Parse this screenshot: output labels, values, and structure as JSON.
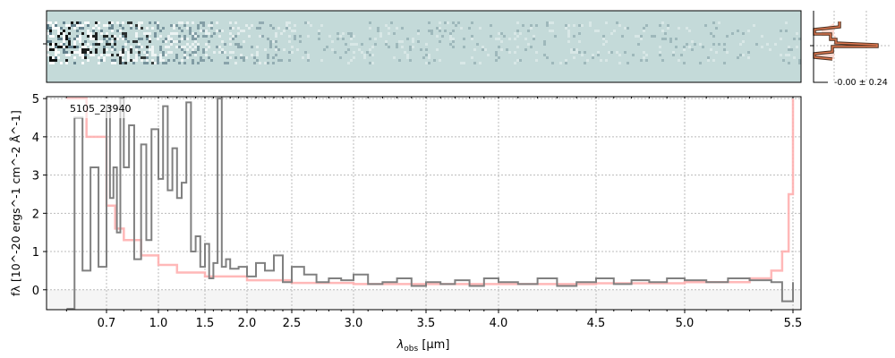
{
  "chart_data": {
    "type": "line",
    "title": "",
    "object_label": "5105_23940",
    "xlabel": "λobs [μm]",
    "ylabel": "fλ [10^-20 ergs^-1 cm^-2 Å^-1]",
    "xlabel_parts": {
      "sym": "λ",
      "sub": "obs",
      "unit": " [μm]"
    },
    "ylabel_parts": {
      "sym": "f",
      "sub": "λ",
      "rest": " [10",
      "e1": "−20",
      "mid": " ergs",
      "e2": "−1",
      "mid2": "cm",
      "e3": "−2",
      "mid3": "Å",
      "e4": "−1",
      "end": "]"
    },
    "xlim": [
      0.55,
      5.53
    ],
    "ylim": [
      -0.52,
      5.05
    ],
    "xticks": [
      "0.7",
      "1.0",
      "1.5",
      "2.0",
      "2.5",
      "3.0",
      "3.5",
      "4.0",
      "4.5",
      "5.0",
      "5.5"
    ],
    "yticks": [
      "0",
      "1",
      "2",
      "3",
      "4",
      "5"
    ],
    "grid": true,
    "side_panel_label": "-0.00 ± 0.24",
    "series": [
      {
        "name": "flux",
        "color": "#808080",
        "x": [
          0.6,
          0.62,
          0.64,
          0.66,
          0.68,
          0.7,
          0.72,
          0.74,
          0.76,
          0.78,
          0.8,
          0.83,
          0.86,
          0.9,
          0.93,
          0.96,
          1.0,
          1.05,
          1.1,
          1.15,
          1.2,
          1.25,
          1.3,
          1.35,
          1.4,
          1.45,
          1.5,
          1.55,
          1.6,
          1.65,
          1.7,
          1.75,
          1.8,
          1.9,
          2.0,
          2.1,
          2.2,
          2.3,
          2.4,
          2.5,
          2.6,
          2.7,
          2.8,
          2.9,
          3.0,
          3.1,
          3.2,
          3.3,
          3.4,
          3.5,
          3.6,
          3.7,
          3.8,
          3.9,
          4.0,
          4.1,
          4.2,
          4.3,
          4.4,
          4.5,
          4.6,
          4.7,
          4.8,
          4.9,
          5.0,
          5.1,
          5.2,
          5.3,
          5.4,
          5.45,
          5.5
        ],
        "y": [
          -0.5,
          4.5,
          0.5,
          3.2,
          0.6,
          4.8,
          2.4,
          3.2,
          1.5,
          5.0,
          3.2,
          4.3,
          0.8,
          3.8,
          1.3,
          4.2,
          2.9,
          4.8,
          2.6,
          3.7,
          2.4,
          2.8,
          4.9,
          1.0,
          1.4,
          0.6,
          1.2,
          0.3,
          0.7,
          5.0,
          0.6,
          0.8,
          0.55,
          0.6,
          0.35,
          0.7,
          0.5,
          0.9,
          0.2,
          0.6,
          0.4,
          0.2,
          0.3,
          0.25,
          0.4,
          0.15,
          0.2,
          0.3,
          0.1,
          0.2,
          0.15,
          0.25,
          0.1,
          0.3,
          0.2,
          0.15,
          0.3,
          0.1,
          0.2,
          0.3,
          0.15,
          0.25,
          0.2,
          0.3,
          0.25,
          0.2,
          0.3,
          0.25,
          0.2,
          -0.3,
          0.2
        ]
      },
      {
        "name": "error",
        "color": "#ffb0b0",
        "x": [
          0.6,
          0.65,
          0.7,
          0.75,
          0.8,
          0.9,
          1.0,
          1.2,
          1.5,
          2.0,
          2.5,
          3.0,
          3.5,
          4.0,
          4.5,
          5.0,
          5.3,
          5.4,
          5.45,
          5.48,
          5.5
        ],
        "y": [
          5.0,
          4.0,
          2.2,
          1.6,
          1.3,
          0.9,
          0.65,
          0.45,
          0.35,
          0.25,
          0.18,
          0.15,
          0.15,
          0.15,
          0.17,
          0.2,
          0.3,
          0.5,
          1.0,
          2.5,
          5.0
        ]
      }
    ]
  }
}
